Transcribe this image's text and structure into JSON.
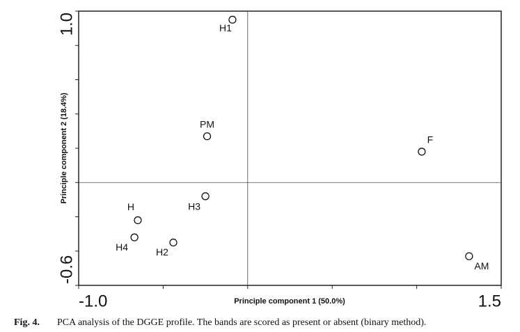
{
  "chart_data": {
    "type": "scatter",
    "x_label": "Principle component 1 (50.0%)",
    "y_label": "Principle component 2 (18.4%)",
    "xlim": [
      -1.0,
      1.5
    ],
    "ylim": [
      -0.6,
      1.0
    ],
    "xticks": [
      {
        "value": -1.0,
        "label": "-1.0"
      },
      {
        "value": 1.5,
        "label": "1.5"
      }
    ],
    "yticks": [
      {
        "value": -0.6,
        "label": "-0.6"
      },
      {
        "value": 1.0,
        "label": "1.0"
      }
    ],
    "x_minor_ticks": [
      -0.5,
      0,
      0.5,
      1.0
    ],
    "y_minor_ticks": [
      -0.4,
      -0.2,
      0,
      0.2,
      0.4,
      0.6,
      0.8
    ],
    "reference_lines": {
      "x": 0,
      "y": 0
    },
    "labels": [
      "H1",
      "PM",
      "F",
      "H3",
      "H",
      "H4",
      "H2",
      "AM"
    ],
    "x": [
      -0.09,
      -0.24,
      1.03,
      -0.25,
      -0.65,
      -0.67,
      -0.44,
      1.31
    ],
    "y": [
      0.95,
      0.27,
      0.18,
      -0.08,
      -0.22,
      -0.32,
      -0.35,
      -0.43
    ],
    "color": "#111111"
  },
  "caption": {
    "label": "Fig. 4.",
    "text": "PCA analysis of the DGGE profile. The bands are scored as present or absent (binary method)."
  }
}
